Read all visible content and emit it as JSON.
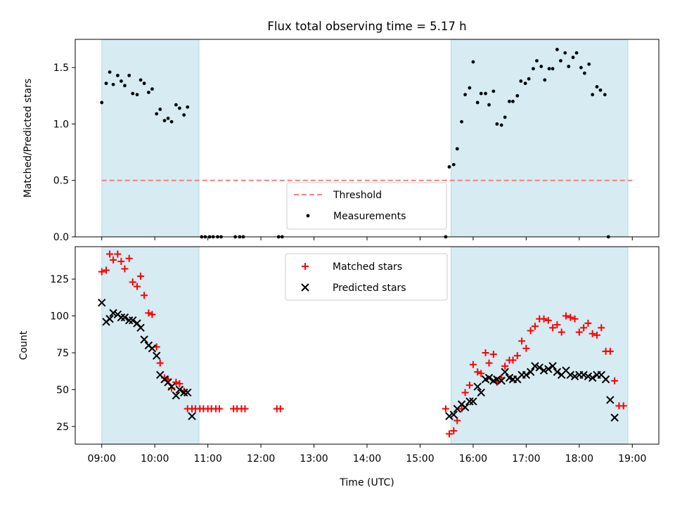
{
  "title": "Flux total observing time = 5.17 h",
  "colors": {
    "shade": "#add8e6",
    "threshold": "#f08080",
    "measurements": "#000000",
    "matched": "#ff0000",
    "predicted": "#000000"
  },
  "chart_data": [
    {
      "type": "scatter",
      "ylabel": "Matched/Predicted stars",
      "xlim": [
        "08:30",
        "19:30"
      ],
      "ylim": [
        0,
        1.75
      ],
      "yticks": [
        0.0,
        0.5,
        1.0,
        1.5
      ],
      "ytick_labels": [
        "0.0",
        "0.5",
        "1.0",
        "1.5"
      ],
      "shaded_spans": [
        [
          "09:00",
          "10:50"
        ],
        [
          "15:35",
          "18:55"
        ]
      ],
      "threshold": {
        "name": "Threshold",
        "value": 0.5,
        "x": [
          "09:00",
          "19:00"
        ]
      },
      "legend": {
        "position": "lower center",
        "entries": [
          "Threshold",
          "Measurements"
        ]
      },
      "series": [
        {
          "name": "Measurements",
          "marker": "dot",
          "points": [
            [
              "09:00",
              1.19
            ],
            [
              "09:05",
              1.36
            ],
            [
              "09:09",
              1.46
            ],
            [
              "09:13",
              1.35
            ],
            [
              "09:18",
              1.43
            ],
            [
              "09:22",
              1.38
            ],
            [
              "09:26",
              1.34
            ],
            [
              "09:31",
              1.43
            ],
            [
              "09:35",
              1.27
            ],
            [
              "09:40",
              1.26
            ],
            [
              "09:44",
              1.39
            ],
            [
              "09:48",
              1.36
            ],
            [
              "09:53",
              1.28
            ],
            [
              "09:57",
              1.31
            ],
            [
              "10:02",
              1.09
            ],
            [
              "10:06",
              1.13
            ],
            [
              "10:11",
              1.03
            ],
            [
              "10:15",
              1.05
            ],
            [
              "10:19",
              1.02
            ],
            [
              "10:24",
              1.17
            ],
            [
              "10:28",
              1.14
            ],
            [
              "10:33",
              1.08
            ],
            [
              "10:37",
              1.15
            ],
            [
              "10:53",
              0
            ],
            [
              "10:57",
              0
            ],
            [
              "11:02",
              0
            ],
            [
              "11:06",
              0
            ],
            [
              "11:11",
              0
            ],
            [
              "11:15",
              0
            ],
            [
              "11:31",
              0
            ],
            [
              "11:36",
              0
            ],
            [
              "11:40",
              0
            ],
            [
              "12:20",
              0
            ],
            [
              "12:24",
              0
            ],
            [
              "15:29",
              0
            ],
            [
              "15:33",
              0.62
            ],
            [
              "15:38",
              0.64
            ],
            [
              "15:42",
              0.78
            ],
            [
              "15:47",
              1.02
            ],
            [
              "15:51",
              1.26
            ],
            [
              "15:56",
              1.32
            ],
            [
              "16:00",
              1.55
            ],
            [
              "16:05",
              1.19
            ],
            [
              "16:09",
              1.27
            ],
            [
              "16:14",
              1.27
            ],
            [
              "16:18",
              1.17
            ],
            [
              "16:23",
              1.29
            ],
            [
              "16:27",
              1.0
            ],
            [
              "16:32",
              0.99
            ],
            [
              "16:36",
              1.06
            ],
            [
              "16:41",
              1.2
            ],
            [
              "16:45",
              1.2
            ],
            [
              "16:50",
              1.25
            ],
            [
              "16:54",
              1.38
            ],
            [
              "16:59",
              1.36
            ],
            [
              "17:03",
              1.4
            ],
            [
              "17:08",
              1.49
            ],
            [
              "17:12",
              1.56
            ],
            [
              "17:17",
              1.51
            ],
            [
              "17:21",
              1.39
            ],
            [
              "17:26",
              1.49
            ],
            [
              "17:30",
              1.49
            ],
            [
              "17:35",
              1.66
            ],
            [
              "17:39",
              1.56
            ],
            [
              "17:44",
              1.63
            ],
            [
              "17:48",
              1.51
            ],
            [
              "17:53",
              1.59
            ],
            [
              "17:57",
              1.63
            ],
            [
              "18:02",
              1.5
            ],
            [
              "18:06",
              1.45
            ],
            [
              "18:11",
              1.53
            ],
            [
              "18:15",
              1.26
            ],
            [
              "18:20",
              1.33
            ],
            [
              "18:24",
              1.3
            ],
            [
              "18:29",
              1.26
            ],
            [
              "18:33",
              0
            ]
          ]
        }
      ]
    },
    {
      "type": "scatter",
      "xlabel": "Time (UTC)",
      "ylabel": "Count",
      "xlim": [
        "08:30",
        "19:30"
      ],
      "ylim": [
        13,
        147
      ],
      "xticks": [
        "09:00",
        "10:00",
        "11:00",
        "12:00",
        "13:00",
        "14:00",
        "15:00",
        "16:00",
        "17:00",
        "18:00",
        "19:00"
      ],
      "xtick_labels": [
        "09:00",
        "10:00",
        "11:00",
        "12:00",
        "13:00",
        "14:00",
        "15:00",
        "16:00",
        "17:00",
        "18:00",
        "19:00"
      ],
      "yticks": [
        25,
        50,
        75,
        100,
        125
      ],
      "ytick_labels": [
        "25",
        "50",
        "75",
        "100",
        "125"
      ],
      "shaded_spans": [
        [
          "09:00",
          "10:50"
        ],
        [
          "15:35",
          "18:55"
        ]
      ],
      "legend": {
        "position": "upper center",
        "entries": [
          "Matched stars",
          "Predicted stars"
        ]
      },
      "series": [
        {
          "name": "Matched stars",
          "marker": "plus",
          "points": [
            [
              "09:00",
              130
            ],
            [
              "09:05",
              131
            ],
            [
              "09:09",
              142
            ],
            [
              "09:13",
              138
            ],
            [
              "09:18",
              142
            ],
            [
              "09:22",
              137
            ],
            [
              "09:26",
              132
            ],
            [
              "09:31",
              139
            ],
            [
              "09:35",
              123
            ],
            [
              "09:40",
              120
            ],
            [
              "09:44",
              127
            ],
            [
              "09:48",
              114
            ],
            [
              "09:53",
              102
            ],
            [
              "09:57",
              101
            ],
            [
              "10:02",
              79
            ],
            [
              "10:06",
              68
            ],
            [
              "10:11",
              58
            ],
            [
              "10:15",
              57
            ],
            [
              "10:19",
              51
            ],
            [
              "10:24",
              55
            ],
            [
              "10:28",
              54
            ],
            [
              "10:33",
              49
            ],
            [
              "10:37",
              37
            ],
            [
              "10:42",
              37
            ],
            [
              "10:46",
              37
            ],
            [
              "10:51",
              37
            ],
            [
              "10:55",
              37
            ],
            [
              "11:00",
              37
            ],
            [
              "11:04",
              37
            ],
            [
              "11:09",
              37
            ],
            [
              "11:13",
              37
            ],
            [
              "11:29",
              37
            ],
            [
              "11:33",
              37
            ],
            [
              "11:38",
              37
            ],
            [
              "11:42",
              37
            ],
            [
              "12:18",
              37
            ],
            [
              "12:22",
              37
            ],
            [
              "15:29",
              37
            ],
            [
              "15:33",
              20
            ],
            [
              "15:38",
              22
            ],
            [
              "15:42",
              29
            ],
            [
              "15:47",
              37
            ],
            [
              "15:51",
              48
            ],
            [
              "15:56",
              53
            ],
            [
              "16:00",
              67
            ],
            [
              "16:05",
              62
            ],
            [
              "16:09",
              61
            ],
            [
              "16:14",
              75
            ],
            [
              "16:18",
              68
            ],
            [
              "16:23",
              74
            ],
            [
              "16:27",
              55
            ],
            [
              "16:32",
              58
            ],
            [
              "16:36",
              66
            ],
            [
              "16:41",
              70
            ],
            [
              "16:45",
              70
            ],
            [
              "16:50",
              73
            ],
            [
              "16:55",
              83
            ],
            [
              "17:00",
              78
            ],
            [
              "17:05",
              90
            ],
            [
              "17:10",
              93
            ],
            [
              "17:15",
              98
            ],
            [
              "17:20",
              98
            ],
            [
              "17:25",
              97
            ],
            [
              "17:30",
              92
            ],
            [
              "17:35",
              94
            ],
            [
              "17:40",
              89
            ],
            [
              "17:45",
              100
            ],
            [
              "17:50",
              99
            ],
            [
              "17:55",
              98
            ],
            [
              "18:00",
              89
            ],
            [
              "18:05",
              92
            ],
            [
              "18:10",
              95
            ],
            [
              "18:15",
              88
            ],
            [
              "18:20",
              87
            ],
            [
              "18:25",
              92
            ],
            [
              "18:30",
              76
            ],
            [
              "18:35",
              76
            ],
            [
              "18:40",
              56
            ],
            [
              "18:45",
              39
            ],
            [
              "18:50",
              39
            ]
          ]
        },
        {
          "name": "Predicted stars",
          "marker": "x",
          "points": [
            [
              "09:00",
              109
            ],
            [
              "09:05",
              96
            ],
            [
              "09:09",
              98
            ],
            [
              "09:13",
              102
            ],
            [
              "09:18",
              101
            ],
            [
              "09:22",
              99
            ],
            [
              "09:26",
              99
            ],
            [
              "09:31",
              97
            ],
            [
              "09:35",
              97
            ],
            [
              "09:40",
              95
            ],
            [
              "09:44",
              92
            ],
            [
              "09:48",
              84
            ],
            [
              "09:53",
              80
            ],
            [
              "09:57",
              78
            ],
            [
              "10:02",
              73
            ],
            [
              "10:06",
              60
            ],
            [
              "10:11",
              57
            ],
            [
              "10:15",
              55
            ],
            [
              "10:19",
              52
            ],
            [
              "10:24",
              46
            ],
            [
              "10:28",
              50
            ],
            [
              "10:33",
              48
            ],
            [
              "10:37",
              48
            ],
            [
              "10:42",
              32
            ],
            [
              "15:33",
              32
            ],
            [
              "15:38",
              33
            ],
            [
              "15:42",
              37
            ],
            [
              "15:47",
              40
            ],
            [
              "15:51",
              38
            ],
            [
              "15:56",
              42
            ],
            [
              "16:00",
              42
            ],
            [
              "16:05",
              52
            ],
            [
              "16:09",
              48
            ],
            [
              "16:14",
              57
            ],
            [
              "16:18",
              58
            ],
            [
              "16:23",
              56
            ],
            [
              "16:27",
              57
            ],
            [
              "16:32",
              56
            ],
            [
              "16:36",
              62
            ],
            [
              "16:41",
              58
            ],
            [
              "16:45",
              57
            ],
            [
              "16:50",
              57
            ],
            [
              "16:55",
              60
            ],
            [
              "17:00",
              60
            ],
            [
              "17:05",
              62
            ],
            [
              "17:10",
              66
            ],
            [
              "17:15",
              65
            ],
            [
              "17:20",
              63
            ],
            [
              "17:25",
              64
            ],
            [
              "17:30",
              66
            ],
            [
              "17:35",
              62
            ],
            [
              "17:40",
              60
            ],
            [
              "17:45",
              63
            ],
            [
              "17:50",
              60
            ],
            [
              "17:55",
              59
            ],
            [
              "18:00",
              60
            ],
            [
              "18:05",
              60
            ],
            [
              "18:10",
              59
            ],
            [
              "18:15",
              58
            ],
            [
              "18:20",
              60
            ],
            [
              "18:25",
              60
            ],
            [
              "18:30",
              57
            ],
            [
              "18:35",
              43
            ],
            [
              "18:40",
              31
            ]
          ]
        }
      ]
    }
  ]
}
